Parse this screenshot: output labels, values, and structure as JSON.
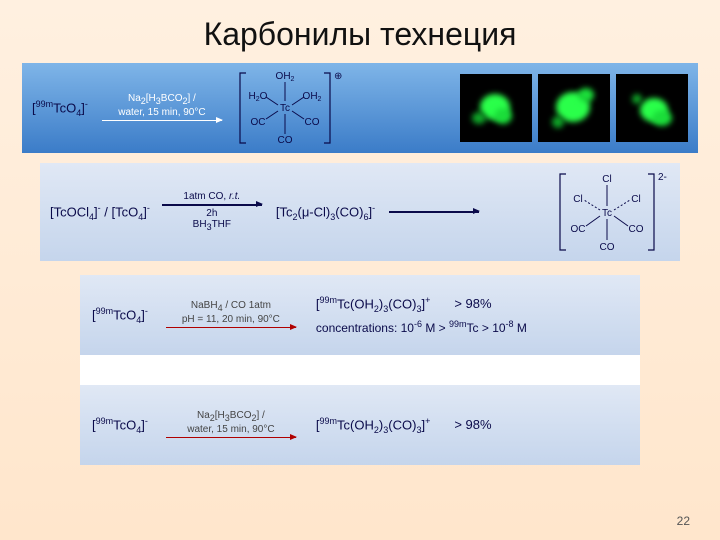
{
  "title": "Карбонилы технеция",
  "page_number": "22",
  "page_bg_gradient": [
    "#fff0e0",
    "#ffe6cc"
  ],
  "panel1": {
    "bg_gradient": [
      "#7fb5e8",
      "#3b7cc8"
    ],
    "reactant_html": "[<span class='sup'>99m</span>TcO<span class='sub'>4</span>]<span class='sup'>-</span>",
    "reactant_color": "#0a0a4a",
    "arrow_color": "#ffffff",
    "arrow_above_html": "Na<span class='sub'>2</span>[H<span class='sub'>3</span>BCO<span class='sub'>2</span>] /",
    "arrow_below": "water, 15 min, 90°C",
    "arrow_text_color": "#ffffff",
    "complex": {
      "center": "Tc",
      "ligands_top": [
        "OH2"
      ],
      "ligands_mid": [
        "H2O",
        "OH2"
      ],
      "ligands_lowmid": [
        "OC",
        "CO"
      ],
      "ligands_bottom": [
        "CO"
      ],
      "charge": "⊕",
      "bracket_color": "#0a0a4a",
      "bond_color": "#0a0a4a",
      "label_color": "#0a0a4a"
    },
    "green_images": {
      "count": 3,
      "bg": "#000000",
      "blob_colors": [
        "#2aff4a",
        "#1bdd3a",
        "#0fa528"
      ]
    }
  },
  "panel2": {
    "bg_gradient": [
      "#e0e8f5",
      "#c5d5ec"
    ],
    "reactant_html": "[TcOCl<span class='sub'>4</span>]<span class='sup'>-</span> / [TcO<span class='sub'>4</span>]<span class='sup'>-</span>",
    "arrow1_above_html": "1atm CO, <span class='italic'>r.t.</span>",
    "arrow1_mid": "2h",
    "arrow1_below_html": "BH<span class='sub'>3</span>THF",
    "product_html": "[Tc<span class='sub'>2</span>(μ-Cl)<span class='sub'>3</span>(CO)<span class='sub'>6</span>]<span class='sup'>-</span>",
    "arrow_color": "#0a0a4a",
    "complex": {
      "center": "Tc",
      "charge": "2-",
      "ligands_top": [
        "Cl"
      ],
      "ligands_mid": [
        "Cl",
        "Cl"
      ],
      "ligands_lowmid": [
        "OC",
        "CO"
      ],
      "ligands_bottom": [
        "CO"
      ],
      "bracket_color": "#0a0a4a",
      "dashed_color": "#0a0a4a"
    }
  },
  "panel3": {
    "reactant_html": "[<span class='sup'>99m</span>TcO<span class='sub'>4</span>]<span class='sup'>-</span>",
    "arrow_above_html": "NaBH<span class='sub'>4</span> / CO 1atm",
    "arrow_below": "pH = 11, 20 min, 90°C",
    "product_html": "[<span class='sup'>99m</span>Tc(OH<span class='sub'>2</span>)<span class='sub'>3</span>(CO)<span class='sub'>3</span>]<span class='sup'>+</span>",
    "yield": "> 98%",
    "conc_html": "concentrations: 10<span class='sup'>-6</span> M > <span class='sup'>99m</span>Tc > 10<span class='sup'>-8</span> M",
    "arrow_color": "#b00000",
    "arrow_text_color": "#444444",
    "text_color": "#0a0a4a"
  },
  "panel4": {
    "reactant_html": "[<span class='sup'>99m</span>TcO<span class='sub'>4</span>]<span class='sup'>-</span>",
    "arrow_above_html": "Na<span class='sub'>2</span>[H<span class='sub'>3</span>BCO<span class='sub'>2</span>] /",
    "arrow_below": "water, 15 min, 90°C",
    "product_html": "[<span class='sup'>99m</span>Tc(OH<span class='sub'>2</span>)<span class='sub'>3</span>(CO)<span class='sub'>3</span>]<span class='sup'>+</span>",
    "yield": "> 98%",
    "arrow_color": "#b00000",
    "arrow_text_color": "#444444",
    "text_color": "#0a0a4a"
  }
}
